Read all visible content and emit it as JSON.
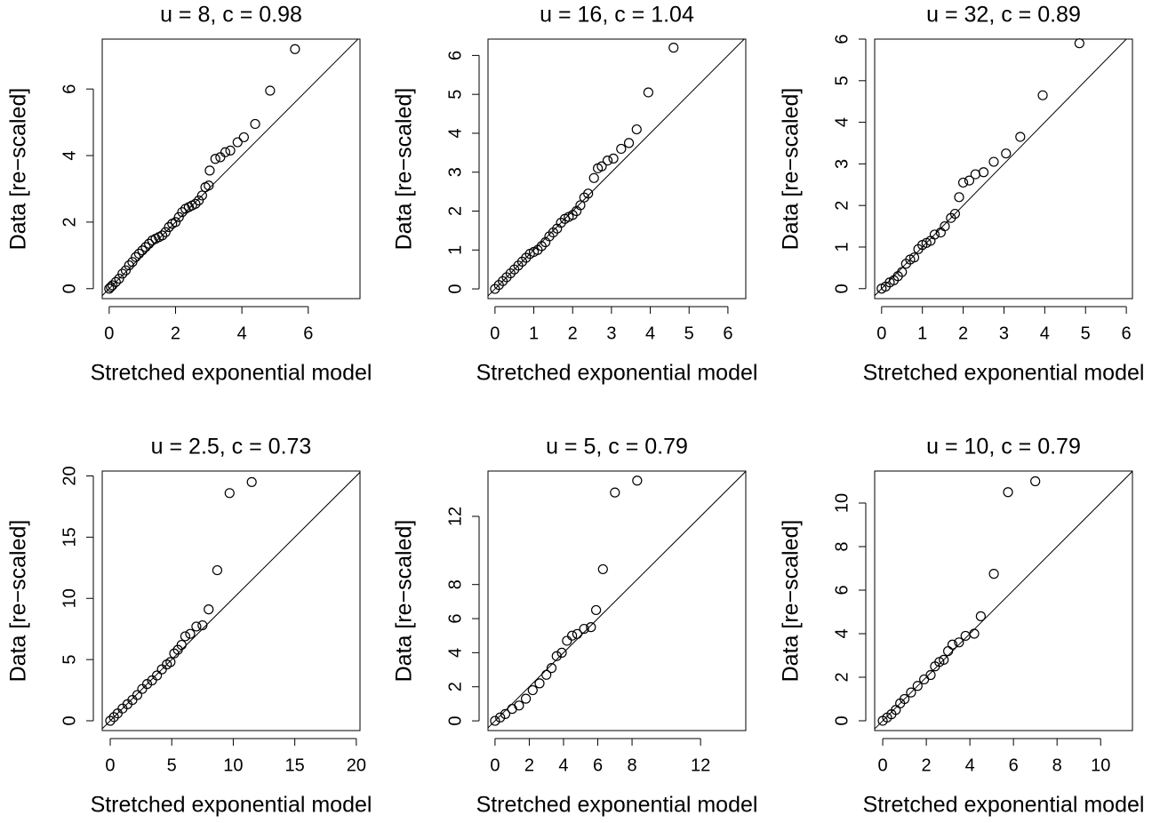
{
  "chart_data": [
    {
      "type": "scatter",
      "title": "u = 8, c = 0.98",
      "x_label": "Stretched exponential model",
      "y_label": "Data [re−scaled]",
      "x": [
        0,
        0.05,
        0.1,
        0.2,
        0.3,
        0.4,
        0.5,
        0.6,
        0.7,
        0.8,
        0.9,
        1.0,
        1.1,
        1.2,
        1.3,
        1.4,
        1.5,
        1.6,
        1.7,
        1.8,
        1.9,
        2.0,
        2.1,
        2.2,
        2.3,
        2.4,
        2.5,
        2.6,
        2.7,
        2.8,
        2.9,
        3.0,
        3.03,
        3.2,
        3.35,
        3.5,
        3.65,
        3.87,
        4.06,
        4.4,
        4.85,
        5.6
      ],
      "values": [
        0,
        0.05,
        0.1,
        0.2,
        0.3,
        0.45,
        0.55,
        0.7,
        0.8,
        0.95,
        1.05,
        1.15,
        1.25,
        1.35,
        1.45,
        1.5,
        1.55,
        1.6,
        1.7,
        1.85,
        1.95,
        2.0,
        2.15,
        2.3,
        2.4,
        2.45,
        2.5,
        2.55,
        2.65,
        2.8,
        3.05,
        3.1,
        3.55,
        3.9,
        3.95,
        4.1,
        4.15,
        4.4,
        4.55,
        4.95,
        5.95,
        7.2
      ],
      "xlim": [
        -0.21,
        7.56
      ],
      "ylim": [
        -0.3,
        7.5
      ],
      "xticks": [
        0,
        2,
        4,
        6
      ],
      "yticks": [
        0,
        2,
        4,
        6
      ]
    },
    {
      "type": "scatter",
      "title": "u = 16, c = 1.04",
      "x_label": "Stretched exponential model",
      "y_label": "Data [re−scaled]",
      "x": [
        0,
        0.1,
        0.2,
        0.3,
        0.4,
        0.5,
        0.6,
        0.7,
        0.8,
        0.9,
        1.0,
        1.1,
        1.2,
        1.3,
        1.4,
        1.5,
        1.6,
        1.7,
        1.8,
        1.9,
        2.0,
        2.1,
        2.2,
        2.3,
        2.4,
        2.55,
        2.65,
        2.75,
        2.9,
        3.05,
        3.25,
        3.45,
        3.65,
        3.95,
        4.6
      ],
      "values": [
        0,
        0.1,
        0.2,
        0.3,
        0.4,
        0.5,
        0.6,
        0.7,
        0.8,
        0.9,
        0.95,
        1.0,
        1.1,
        1.2,
        1.35,
        1.45,
        1.55,
        1.7,
        1.8,
        1.85,
        1.9,
        2.0,
        2.15,
        2.35,
        2.45,
        2.85,
        3.1,
        3.15,
        3.3,
        3.35,
        3.6,
        3.75,
        4.1,
        5.05,
        6.2
      ],
      "xlim": [
        -0.18,
        6.46
      ],
      "ylim": [
        -0.25,
        6.42
      ],
      "xticks": [
        0,
        1,
        2,
        3,
        4,
        5,
        6
      ],
      "yticks": [
        0,
        1,
        2,
        3,
        4,
        5,
        6
      ]
    },
    {
      "type": "scatter",
      "title": "u = 32, c = 0.89",
      "x_label": "Stretched exponential model",
      "y_label": "Data [re−scaled]",
      "x": [
        0,
        0.1,
        0.2,
        0.3,
        0.4,
        0.5,
        0.6,
        0.7,
        0.8,
        0.9,
        1.0,
        1.1,
        1.2,
        1.3,
        1.45,
        1.55,
        1.7,
        1.8,
        1.9,
        2.0,
        2.15,
        2.3,
        2.5,
        2.75,
        3.05,
        3.4,
        3.95,
        4.85
      ],
      "values": [
        0,
        0.05,
        0.15,
        0.2,
        0.3,
        0.4,
        0.6,
        0.7,
        0.75,
        0.95,
        1.05,
        1.1,
        1.15,
        1.3,
        1.35,
        1.5,
        1.7,
        1.8,
        2.2,
        2.55,
        2.6,
        2.75,
        2.8,
        3.05,
        3.25,
        3.65,
        4.65,
        5.9
      ],
      "xlim": [
        -0.17,
        6.15
      ],
      "ylim": [
        -0.24,
        6.0
      ],
      "xticks": [
        0,
        1,
        2,
        3,
        4,
        5,
        6
      ],
      "yticks": [
        0,
        1,
        2,
        3,
        4,
        5,
        6
      ]
    },
    {
      "type": "scatter",
      "title": "u = 2.5, c = 0.73",
      "x_label": "Stretched exponential model",
      "y_label": "Data [re−scaled]",
      "x": [
        0,
        0.3,
        0.6,
        1,
        1.4,
        1.8,
        2.2,
        2.6,
        3,
        3.4,
        3.8,
        4.2,
        4.6,
        4.9,
        5.2,
        5.5,
        5.8,
        6.1,
        6.5,
        7.0,
        7.5,
        8.0,
        8.7,
        9.7,
        11.5
      ],
      "values": [
        0,
        0.3,
        0.6,
        1,
        1.35,
        1.7,
        2.1,
        2.6,
        3,
        3.3,
        3.7,
        4.2,
        4.6,
        4.8,
        5.5,
        5.8,
        6.2,
        6.9,
        7.1,
        7.7,
        7.8,
        9.1,
        12.3,
        18.6,
        19.5
      ],
      "xlim": [
        -0.65,
        20.3
      ],
      "ylim": [
        -0.8,
        20.4
      ],
      "xticks": [
        0,
        5,
        10,
        15,
        20
      ],
      "yticks": [
        0,
        5,
        10,
        15,
        20
      ]
    },
    {
      "type": "scatter",
      "title": "u = 5, c = 0.79",
      "x_label": "Stretched exponential model",
      "y_label": "Data [re−scaled]",
      "x": [
        0,
        0.3,
        0.6,
        1,
        1.4,
        1.8,
        2.2,
        2.6,
        3,
        3.3,
        3.6,
        3.9,
        4.2,
        4.5,
        4.8,
        5.2,
        5.6,
        5.9,
        6.3,
        7.0,
        8.3
      ],
      "values": [
        0,
        0.2,
        0.4,
        0.7,
        0.9,
        1.3,
        1.8,
        2.2,
        2.7,
        3.1,
        3.8,
        4.0,
        4.7,
        5.0,
        5.1,
        5.4,
        5.5,
        6.5,
        8.9,
        13.4,
        14.1
      ],
      "xlim": [
        -0.41,
        14.64
      ],
      "ylim": [
        -0.57,
        14.66
      ],
      "xticks": [
        0,
        2,
        4,
        6,
        8,
        12
      ],
      "yticks": [
        0,
        2,
        4,
        6,
        8,
        12
      ]
    },
    {
      "type": "scatter",
      "title": "u = 10, c = 0.79",
      "x_label": "Stretched exponential model",
      "y_label": "Data [re−scaled]",
      "x": [
        0,
        0.2,
        0.4,
        0.6,
        0.8,
        1,
        1.3,
        1.6,
        1.9,
        2.2,
        2.4,
        2.6,
        2.8,
        3.0,
        3.2,
        3.5,
        3.8,
        4.2,
        4.5,
        5.1,
        5.75,
        7.0
      ],
      "values": [
        0,
        0.15,
        0.3,
        0.5,
        0.8,
        1,
        1.3,
        1.6,
        1.9,
        2.1,
        2.5,
        2.7,
        2.8,
        3.2,
        3.5,
        3.6,
        3.9,
        4.0,
        4.8,
        6.75,
        10.5,
        11.0
      ],
      "xlim": [
        -0.37,
        11.46
      ],
      "ylim": [
        -0.45,
        11.47
      ],
      "xticks": [
        0,
        2,
        4,
        6,
        8,
        10
      ],
      "yticks": [
        0,
        2,
        4,
        6,
        8,
        10
      ]
    }
  ]
}
